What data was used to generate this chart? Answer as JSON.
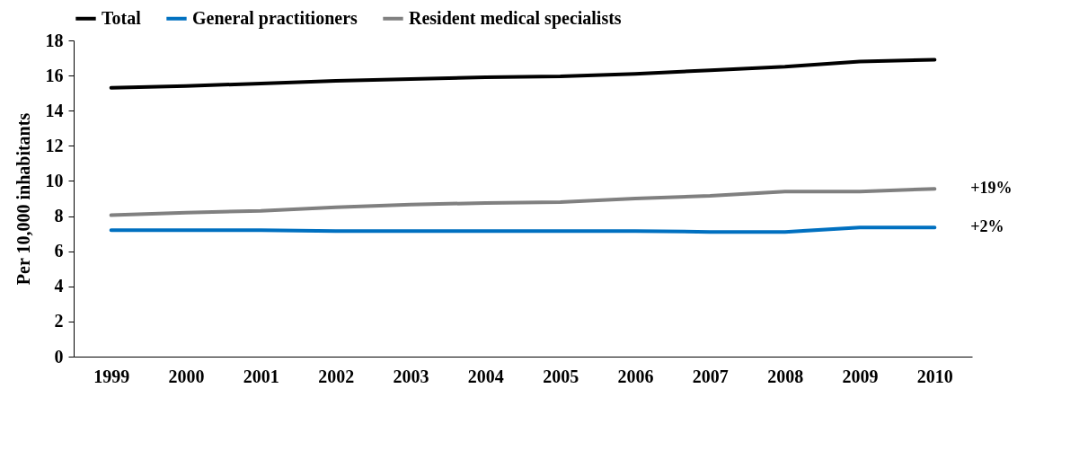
{
  "chart_data": {
    "type": "line",
    "ylabel": "Per 10,000 inhabitants",
    "categories": [
      "1999",
      "2000",
      "2001",
      "2002",
      "2003",
      "2004",
      "2005",
      "2006",
      "2007",
      "2008",
      "2009",
      "2010"
    ],
    "series": [
      {
        "name": "Total",
        "color": "#000000",
        "values": [
          15.3,
          15.4,
          15.55,
          15.7,
          15.8,
          15.9,
          15.95,
          16.1,
          16.3,
          16.5,
          16.8,
          16.9
        ]
      },
      {
        "name": "General practitioners",
        "color": "#0070c0",
        "values": [
          7.2,
          7.2,
          7.2,
          7.15,
          7.15,
          7.15,
          7.15,
          7.15,
          7.1,
          7.1,
          7.35,
          7.35
        ]
      },
      {
        "name": "Resident medical specialists",
        "color": "#808080",
        "values": [
          8.05,
          8.2,
          8.3,
          8.5,
          8.65,
          8.75,
          8.8,
          9.0,
          9.15,
          9.4,
          9.4,
          9.55
        ]
      }
    ],
    "annotations": [
      {
        "text": "+19%",
        "x": "2010",
        "y": 9.55
      },
      {
        "text": "+2%",
        "x": "2010",
        "y": 7.35
      }
    ],
    "ylim": [
      0,
      18
    ],
    "yticks": [
      0,
      2,
      4,
      6,
      8,
      10,
      12,
      14,
      16,
      18
    ],
    "grid": false,
    "legend": "top",
    "marker": "none",
    "line_style": "solid"
  }
}
